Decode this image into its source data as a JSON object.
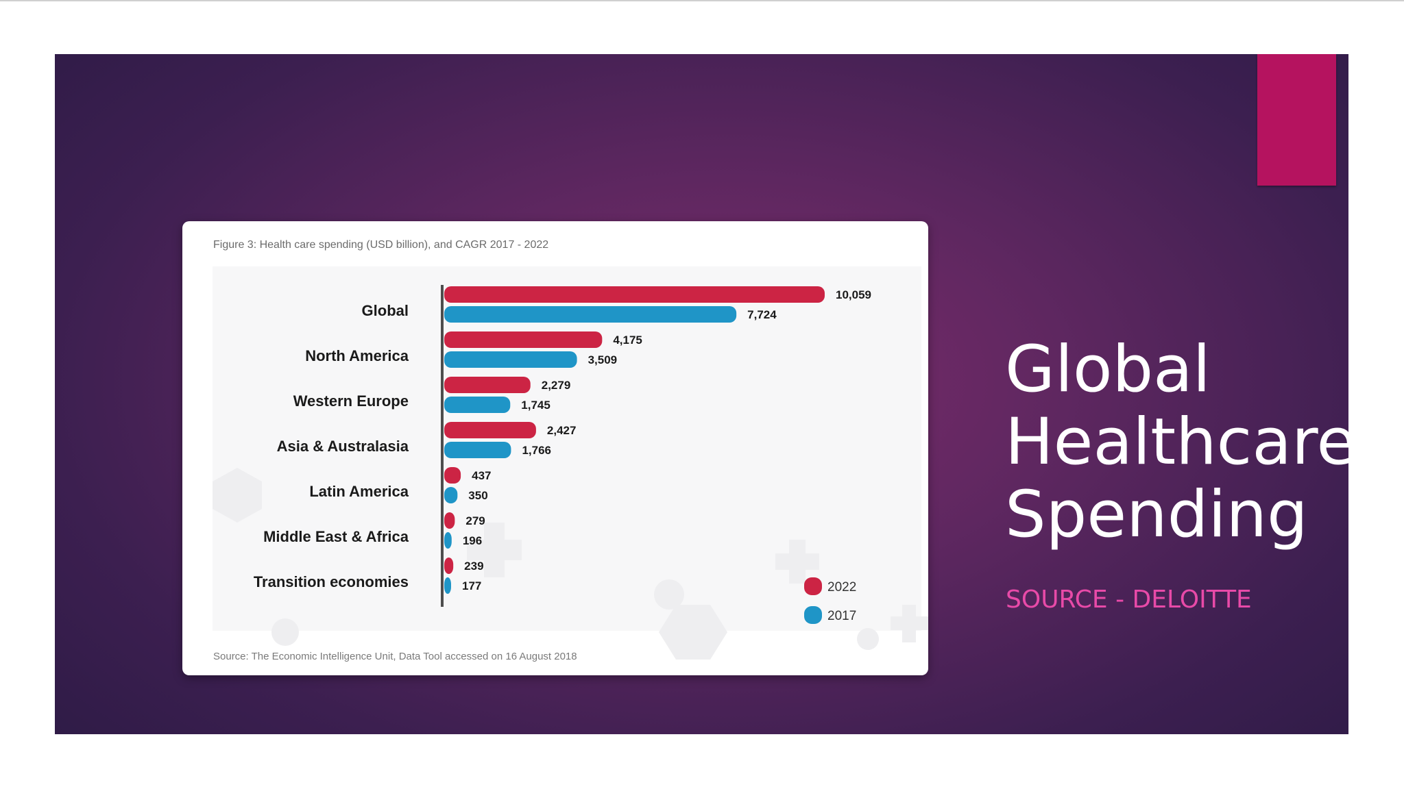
{
  "slide": {
    "title_lines": [
      "Global",
      "Healthcare",
      "Spending"
    ],
    "source": "SOURCE - DELOITTE"
  },
  "colors": {
    "series_2022": "#cc2444",
    "series_2017": "#1f95c7",
    "accent": "#b5135f",
    "source_text": "#e84aa8"
  },
  "chart_data": {
    "type": "bar",
    "orientation": "horizontal",
    "title": "Figure 3: Health care spending (USD billion), and CAGR 2017 - 2022",
    "source_note": "Source: The Economic Intelligence Unit, Data Tool accessed on 16 August 2018",
    "categories": [
      "Global",
      "North America",
      "Western Europe",
      "Asia & Australasia",
      "Latin America",
      "Middle East & Africa",
      "Transition economies"
    ],
    "series": [
      {
        "name": "2022",
        "values": [
          10059,
          4175,
          2279,
          2427,
          437,
          279,
          239
        ],
        "labels": [
          "10,059",
          "4,175",
          "2,279",
          "2,427",
          "437",
          "279",
          "239"
        ]
      },
      {
        "name": "2017",
        "values": [
          7724,
          3509,
          1745,
          1766,
          350,
          196,
          177
        ],
        "labels": [
          "7,724",
          "3,509",
          "1,745",
          "1,766",
          "350",
          "196",
          "177"
        ]
      }
    ],
    "legend_position": "bottom-right",
    "grid": false
  }
}
